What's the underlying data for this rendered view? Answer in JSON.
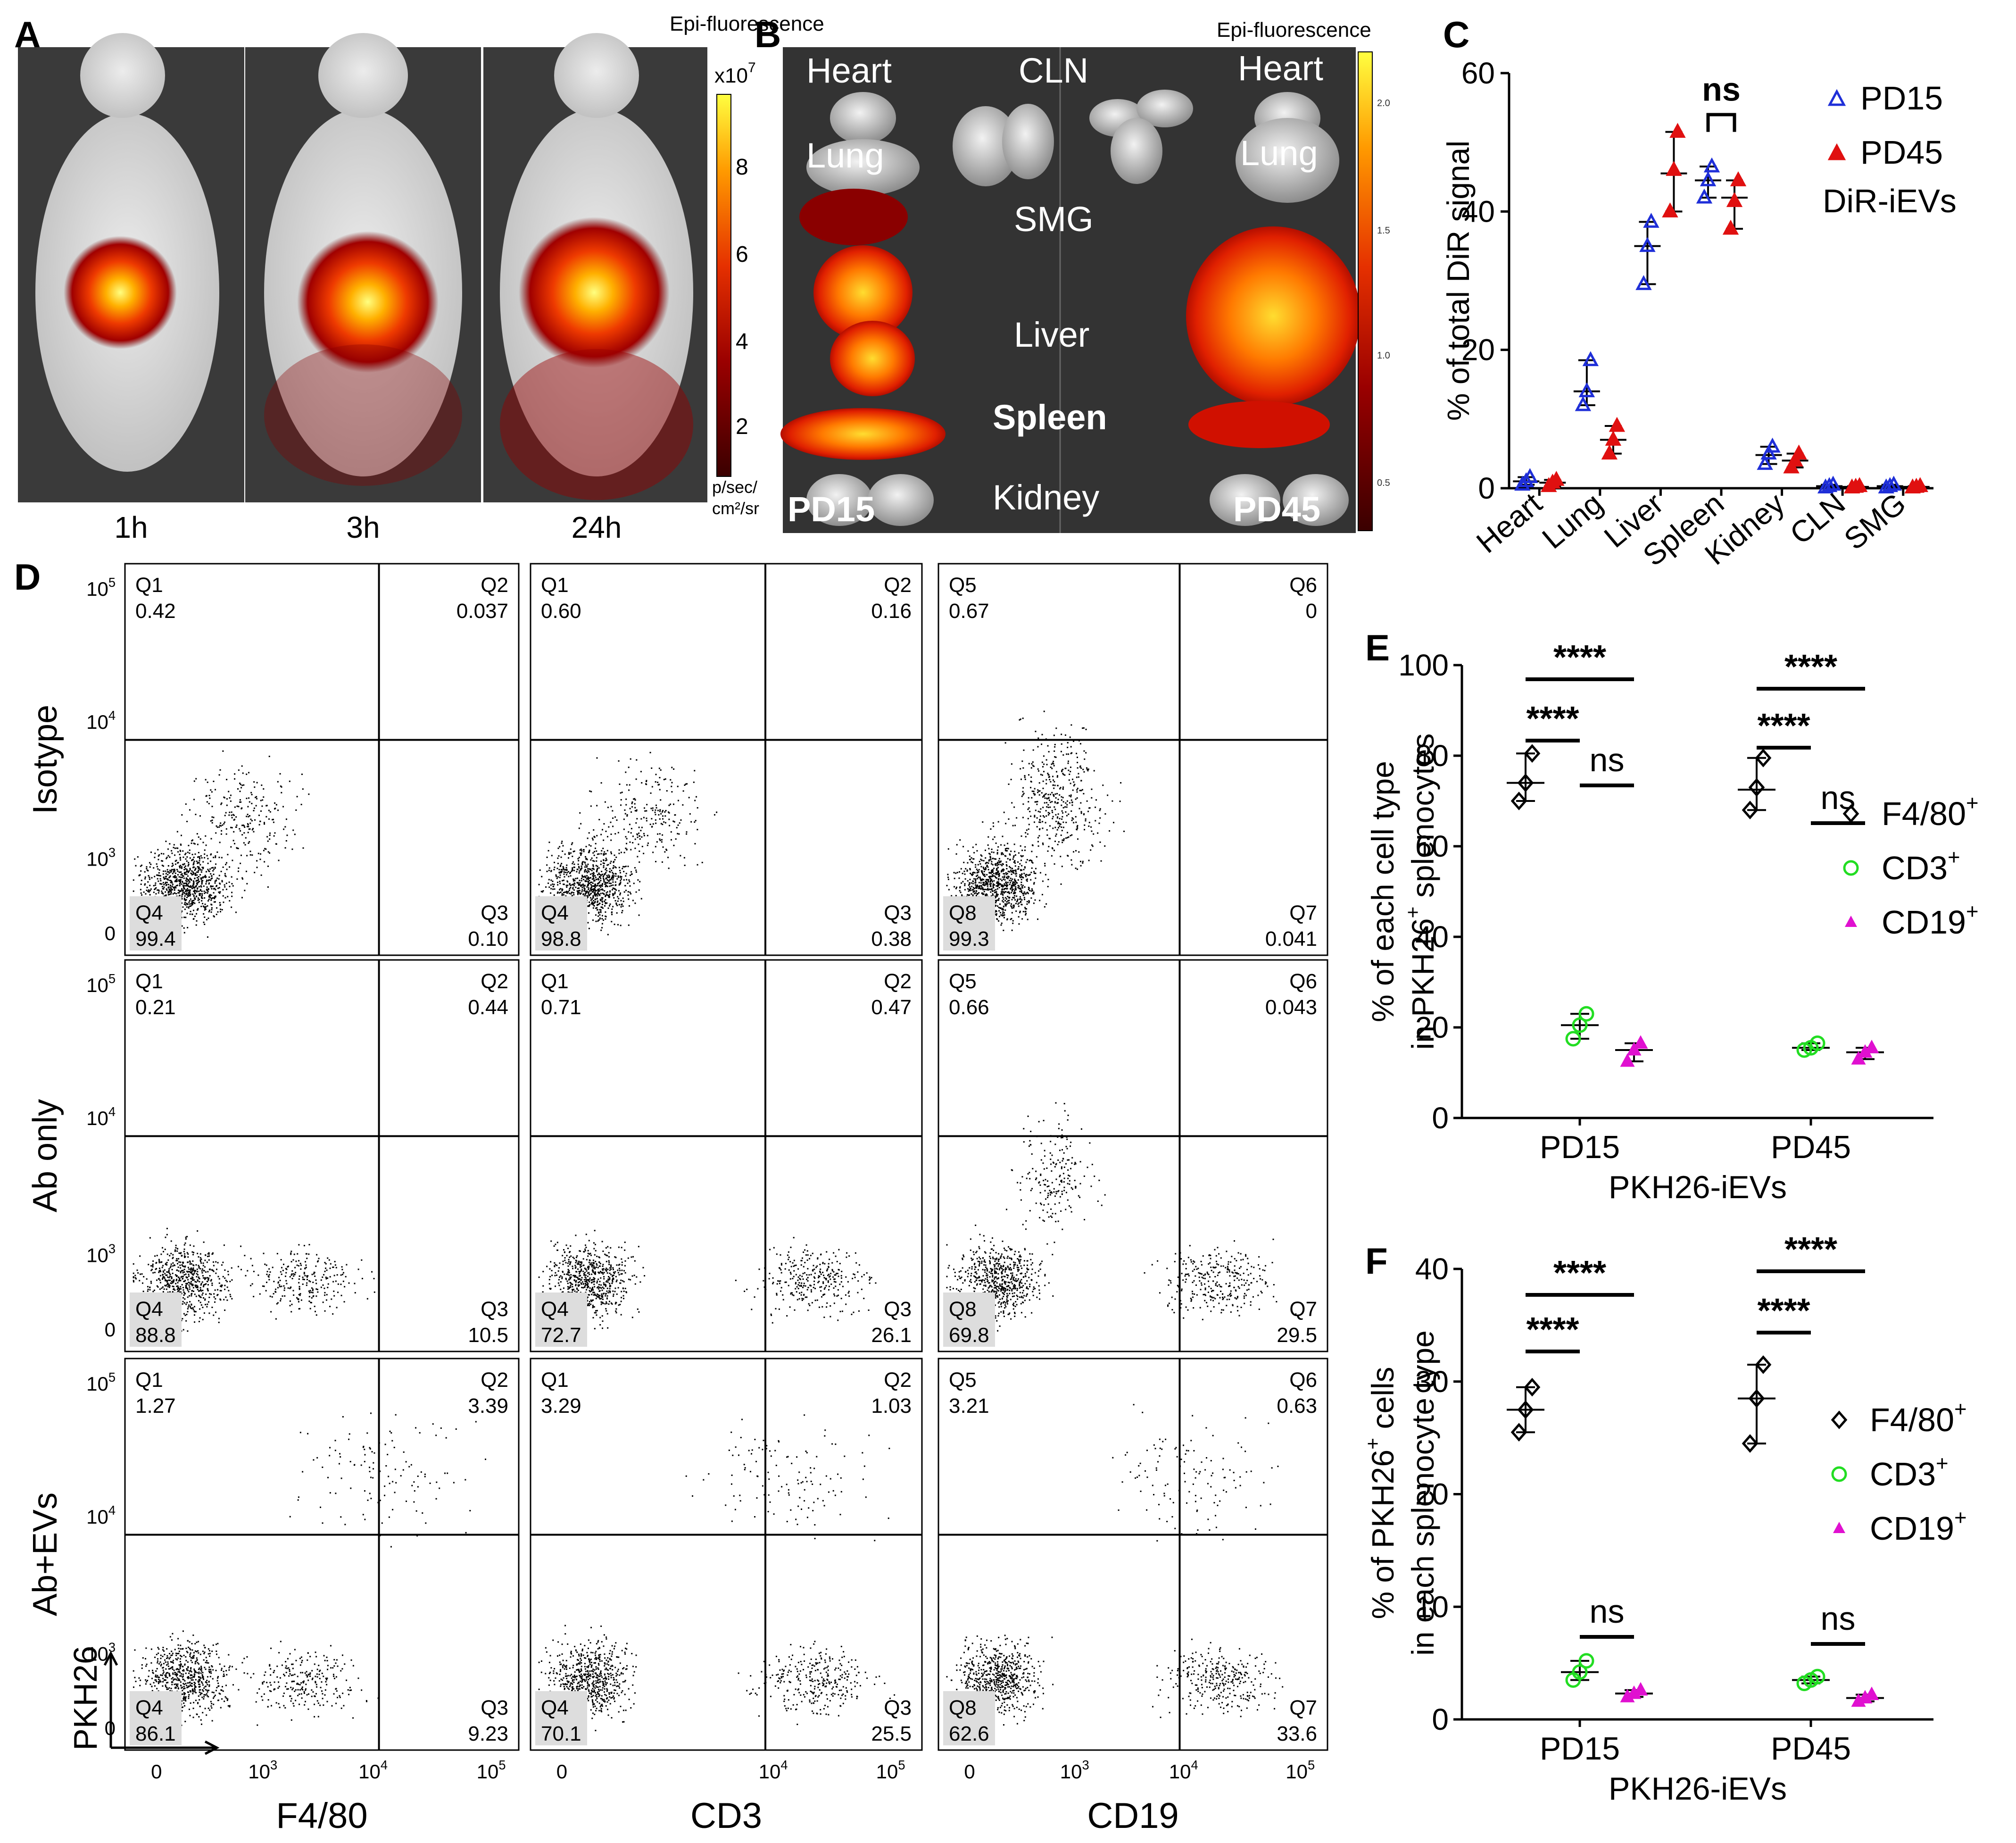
{
  "panel_letters": [
    "A",
    "B",
    "C",
    "D",
    "E",
    "F"
  ],
  "panelA": {
    "header": "Epi-fluorescence",
    "scale_exponent": "x10",
    "scale_exponent_sup": "7",
    "scale_ticks": [
      "8",
      "6",
      "4",
      "2"
    ],
    "scale_unit_line1": "p/sec/",
    "scale_unit_line2": "cm²/sr",
    "timepoints": [
      "1h",
      "3h",
      "24h"
    ]
  },
  "panelB": {
    "header": "Epi-fluorescence",
    "organ_labels": [
      "Heart",
      "CLN",
      "Heart",
      "Lung",
      "Lung",
      "SMG",
      "Liver",
      "Spleen",
      "Kidney"
    ],
    "group_labels": [
      "PD15",
      "PD45"
    ],
    "scale_ticks": [
      "2.0",
      "1.5",
      "1.0",
      "0.5"
    ]
  },
  "chart_data": [
    {
      "panel": "C",
      "type": "scatter",
      "ylabel": "% of total DiR signal",
      "categories": [
        "Heart",
        "Lung",
        "Liver",
        "Spleen",
        "Kidney",
        "CLN",
        "SMG"
      ],
      "ylim": [
        0,
        60
      ],
      "yticks": [
        "0",
        "20",
        "40",
        "60"
      ],
      "legend": [
        "PD15",
        "PD45"
      ],
      "legend_note": "DiR-iEVs",
      "annotation": "ns",
      "colors": {
        "PD15": "#1f2fd8",
        "PD45": "#e01010"
      },
      "series": [
        {
          "name": "PD15",
          "mean": [
            1.0,
            14.0,
            35.0,
            44.5,
            4.8,
            0.3,
            0.3
          ],
          "points": [
            [
              0.5,
              1.0,
              1.6
            ],
            [
              12,
              14,
              18.5
            ],
            [
              29.5,
              35,
              38.5
            ],
            [
              42,
              44.5,
              46.5
            ],
            [
              3.5,
              5,
              6
            ],
            [
              0.1,
              0.3,
              0.5
            ],
            [
              0.1,
              0.3,
              0.5
            ]
          ]
        },
        {
          "name": "PD45",
          "mean": [
            0.8,
            7.0,
            45.5,
            42.0,
            4.0,
            0.2,
            0.2
          ],
          "points": [
            [
              0.3,
              0.8,
              1.2
            ],
            [
              5,
              7,
              9
            ],
            [
              40,
              46,
              51.5
            ],
            [
              37.5,
              41.5,
              44.5
            ],
            [
              3,
              4,
              5
            ],
            [
              0.1,
              0.2,
              0.3
            ],
            [
              0.1,
              0.2,
              0.3
            ]
          ]
        }
      ]
    },
    {
      "panel": "E",
      "type": "scatter",
      "ylabel_line1": "% of each cell type",
      "ylabel_line2": "in PKH26",
      "ylabel_line2_sup": "+",
      "ylabel_line2_end": " splenocytes",
      "xlabel": "PKH26-iEVs",
      "categories": [
        "PD15",
        "PD45"
      ],
      "ylim": [
        0,
        100
      ],
      "yticks": [
        "0",
        "20",
        "40",
        "60",
        "80",
        "100"
      ],
      "legend": [
        "F4/80",
        "CD3",
        "CD19"
      ],
      "legend_sup": "+",
      "significance": [
        "****",
        "****",
        "ns",
        "****",
        "****",
        "ns"
      ],
      "series": [
        {
          "name": "F4/80",
          "mean": [
            74,
            72.5
          ],
          "points": [
            [
              70,
              74,
              80.5
            ],
            [
              68,
              73,
              79.5
            ]
          ]
        },
        {
          "name": "CD3",
          "mean": [
            20.5,
            15.5
          ],
          "points": [
            [
              17.5,
              20.5,
              23
            ],
            [
              15,
              15.5,
              16.5
            ]
          ]
        },
        {
          "name": "CD19",
          "mean": [
            15,
            14.5
          ],
          "points": [
            [
              12.5,
              15,
              16.5
            ],
            [
              13,
              14.5,
              15.5
            ]
          ]
        }
      ]
    },
    {
      "panel": "F",
      "type": "scatter",
      "ylabel_line1_pre": "% of PKH26",
      "ylabel_line1_sup": "+",
      "ylabel_line1_post": " cells",
      "ylabel_line2": "in each splenocyte type",
      "xlabel": "PKH26-iEVs",
      "categories": [
        "PD15",
        "PD45"
      ],
      "ylim": [
        0,
        40
      ],
      "yticks": [
        "0",
        "10",
        "20",
        "30",
        "40"
      ],
      "legend": [
        "F4/80",
        "CD3",
        "CD19"
      ],
      "legend_sup": "+",
      "significance": [
        "****",
        "****",
        "ns",
        "****",
        "****",
        "ns"
      ],
      "series": [
        {
          "name": "F4/80",
          "mean": [
            27.5,
            28.5
          ],
          "points": [
            [
              25.5,
              27.5,
              29.5
            ],
            [
              24.5,
              28.5,
              31.5
            ]
          ]
        },
        {
          "name": "CD3",
          "mean": [
            4.2,
            3.5
          ],
          "points": [
            [
              3.5,
              4.2,
              5.2
            ],
            [
              3.2,
              3.5,
              3.8
            ]
          ]
        },
        {
          "name": "CD19",
          "mean": [
            2.3,
            1.9
          ],
          "points": [
            [
              2.0,
              2.3,
              2.6
            ],
            [
              1.6,
              1.9,
              2.2
            ]
          ]
        }
      ]
    }
  ],
  "panelD": {
    "row_labels": [
      "Isotype",
      "Ab only",
      "Ab+EVs"
    ],
    "col_labels": [
      "F4/80",
      "CD3",
      "CD19"
    ],
    "yaxis_corner_label": "PKH26",
    "y_ticks": [
      {
        "base": "10",
        "sup": "5"
      },
      {
        "base": "10",
        "sup": "4"
      },
      {
        "base": "10",
        "sup": "3"
      },
      {
        "base": "0",
        "sup": ""
      }
    ],
    "x_ticks": [
      [
        {
          "base": "0",
          "sup": ""
        },
        {
          "base": "10",
          "sup": "3"
        },
        {
          "base": "10",
          "sup": "4"
        },
        {
          "base": "10",
          "sup": "5"
        }
      ],
      [
        {
          "base": "0",
          "sup": ""
        },
        {
          "base": "10",
          "sup": "4"
        },
        {
          "base": "10",
          "sup": "5"
        }
      ],
      [
        {
          "base": "0",
          "sup": ""
        },
        {
          "base": "10",
          "sup": "3"
        },
        {
          "base": "10",
          "sup": "4"
        },
        {
          "base": "10",
          "sup": "5"
        }
      ]
    ],
    "plots": [
      [
        {
          "q": [
            [
              "Q1",
              "0.42"
            ],
            [
              "Q2",
              "0.037"
            ],
            [
              "Q3",
              "0.10"
            ],
            [
              "Q4",
              "99.4"
            ]
          ]
        },
        {
          "q": [
            [
              "Q1",
              "0.60"
            ],
            [
              "Q2",
              "0.16"
            ],
            [
              "Q3",
              "0.38"
            ],
            [
              "Q4",
              "98.8"
            ]
          ]
        },
        {
          "q": [
            [
              "Q5",
              "0.67"
            ],
            [
              "Q6",
              "0"
            ],
            [
              "Q7",
              "0.041"
            ],
            [
              "Q8",
              "99.3"
            ]
          ]
        }
      ],
      [
        {
          "q": [
            [
              "Q1",
              "0.21"
            ],
            [
              "Q2",
              "0.44"
            ],
            [
              "Q3",
              "10.5"
            ],
            [
              "Q4",
              "88.8"
            ]
          ]
        },
        {
          "q": [
            [
              "Q1",
              "0.71"
            ],
            [
              "Q2",
              "0.47"
            ],
            [
              "Q3",
              "26.1"
            ],
            [
              "Q4",
              "72.7"
            ]
          ]
        },
        {
          "q": [
            [
              "Q5",
              "0.66"
            ],
            [
              "Q6",
              "0.043"
            ],
            [
              "Q7",
              "29.5"
            ],
            [
              "Q8",
              "69.8"
            ]
          ]
        }
      ],
      [
        {
          "q": [
            [
              "Q1",
              "1.27"
            ],
            [
              "Q2",
              "3.39"
            ],
            [
              "Q3",
              "9.23"
            ],
            [
              "Q4",
              "86.1"
            ]
          ]
        },
        {
          "q": [
            [
              "Q1",
              "3.29"
            ],
            [
              "Q2",
              "1.03"
            ],
            [
              "Q3",
              "25.5"
            ],
            [
              "Q4",
              "70.1"
            ]
          ]
        },
        {
          "q": [
            [
              "Q5",
              "3.21"
            ],
            [
              "Q6",
              "0.63"
            ],
            [
              "Q7",
              "33.6"
            ],
            [
              "Q8",
              "62.6"
            ]
          ]
        }
      ]
    ]
  }
}
